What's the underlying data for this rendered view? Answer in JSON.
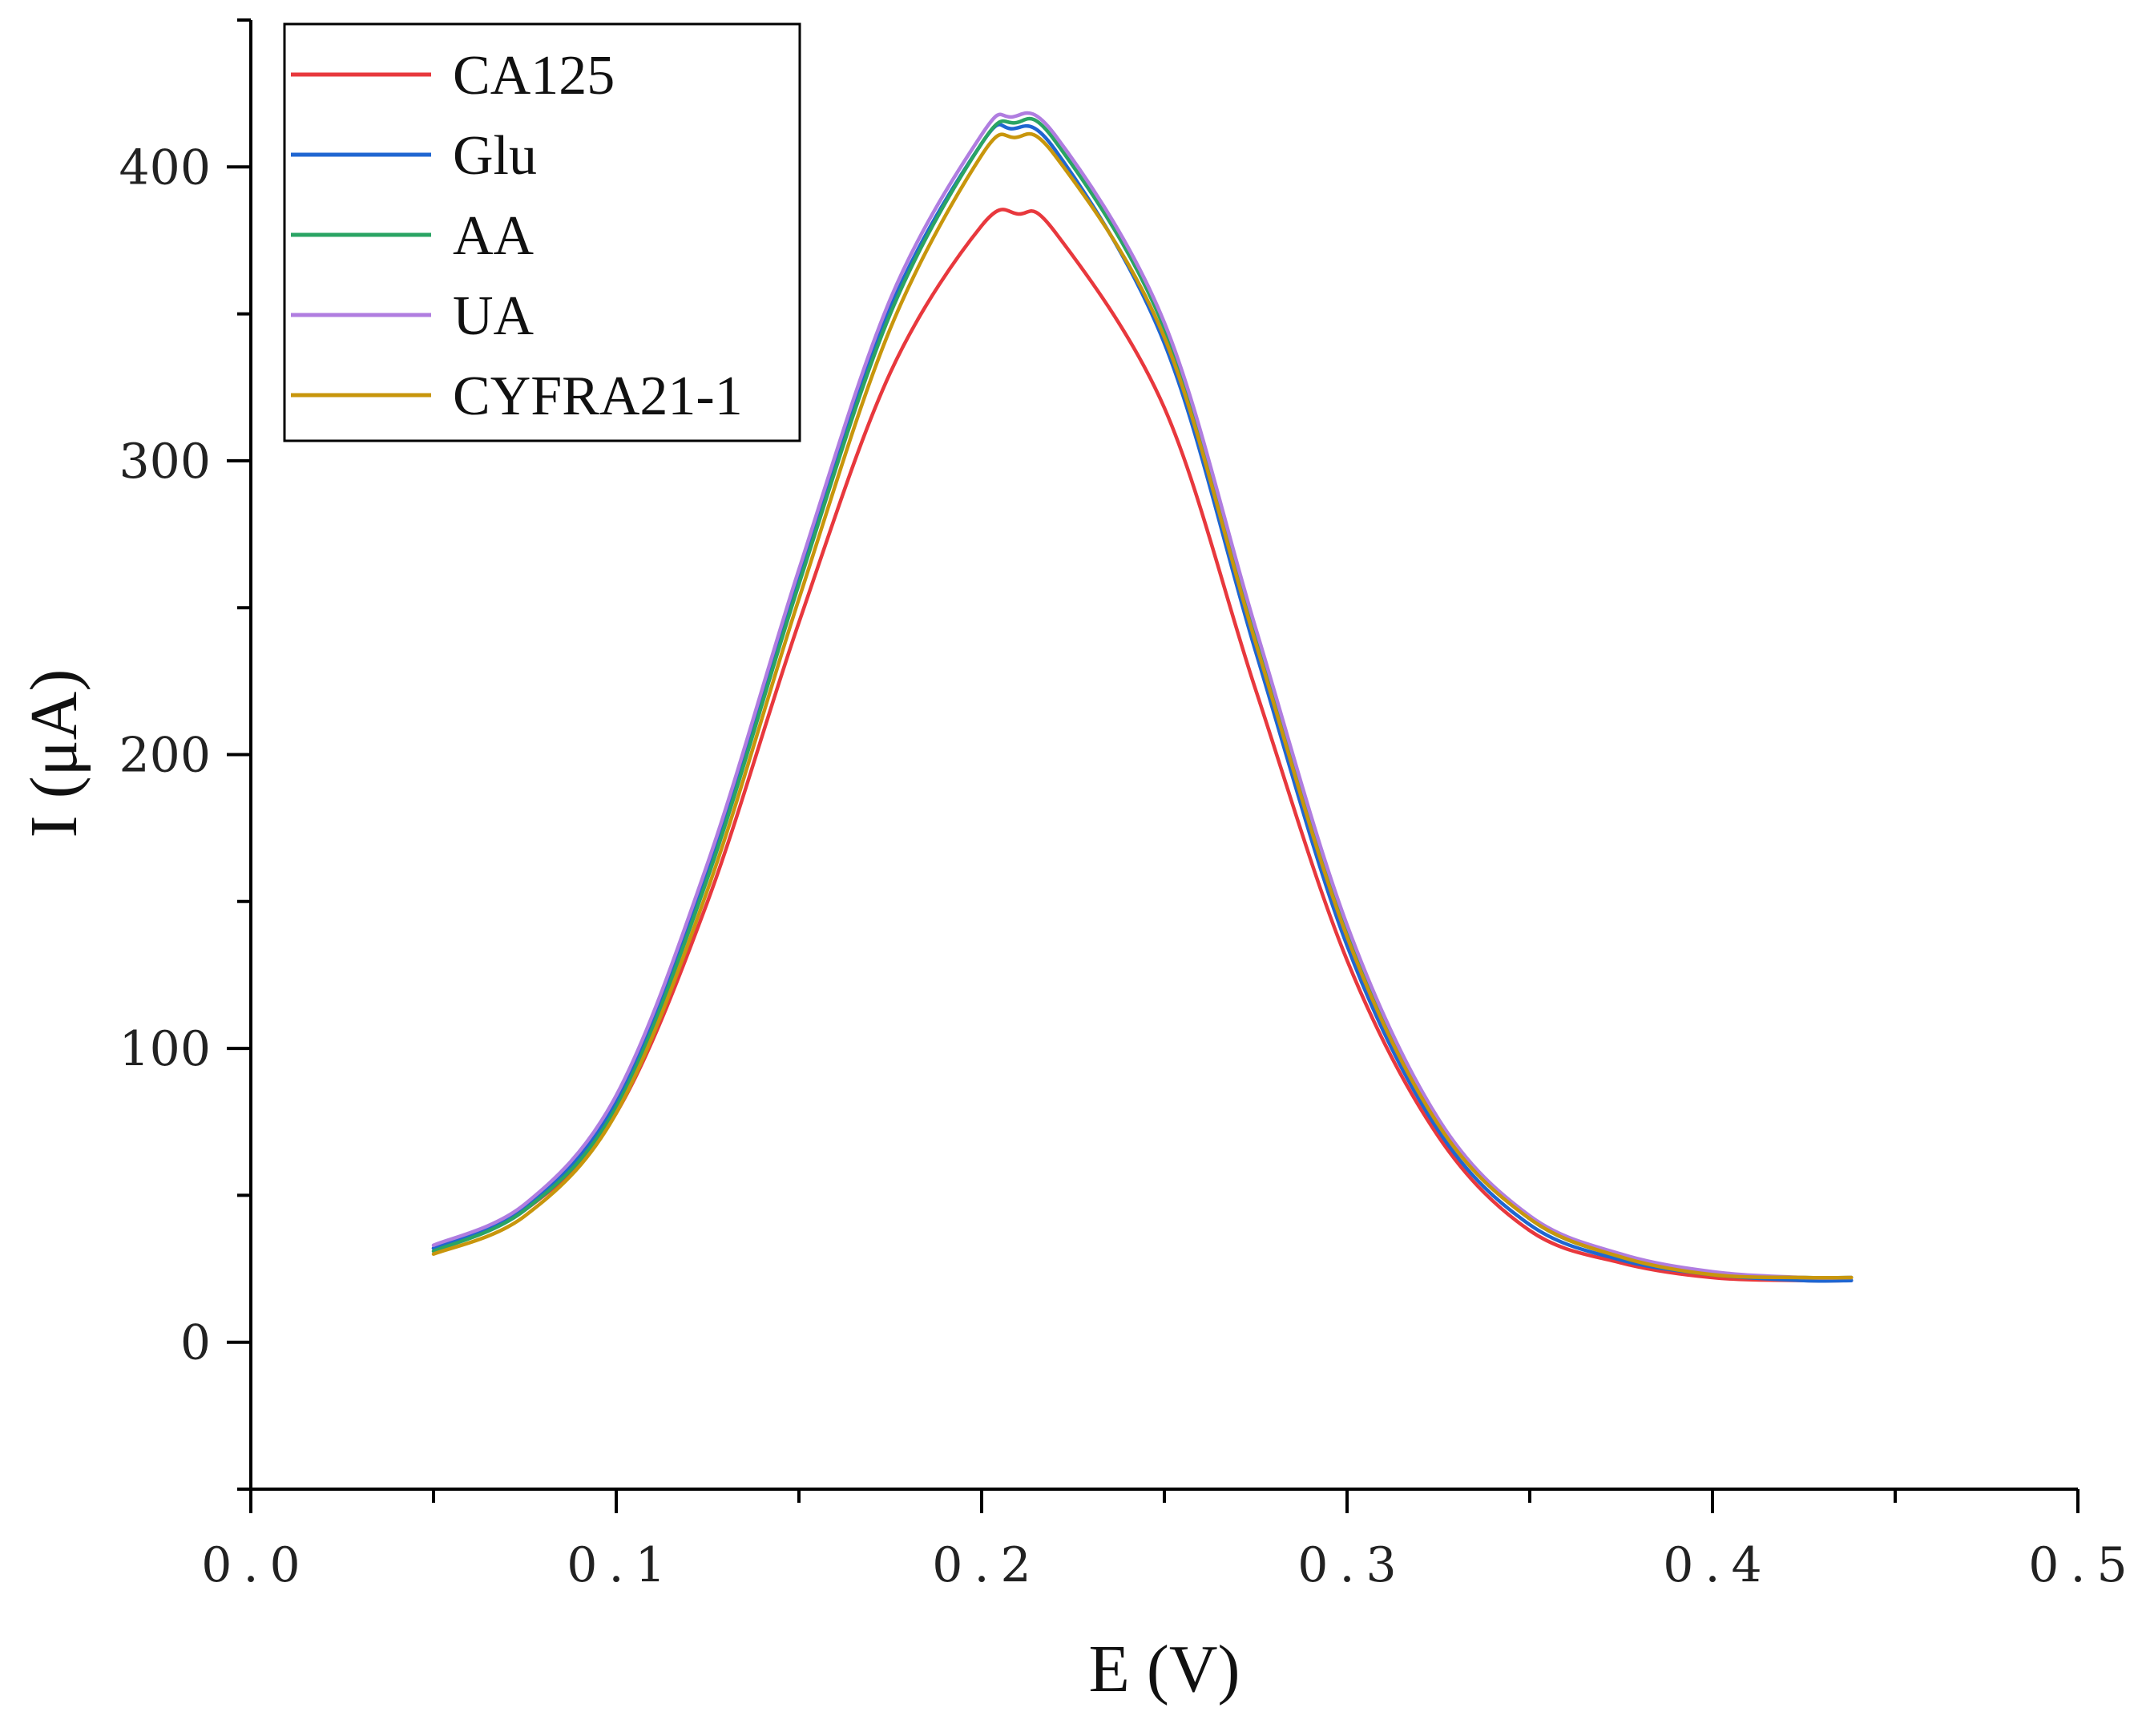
{
  "chart_data": {
    "type": "line",
    "title": "",
    "xlabel": "E (V)",
    "ylabel": "I (μA)",
    "xlim": [
      0.0,
      0.5
    ],
    "ylim": [
      -50,
      450
    ],
    "x_ticks": [
      0.0,
      0.1,
      0.2,
      0.3,
      0.4,
      0.5
    ],
    "x_tick_labels": [
      "0.0",
      "0.1",
      "0.2",
      "0.3",
      "0.4",
      "0.5"
    ],
    "y_ticks": [
      0,
      100,
      200,
      300,
      400
    ],
    "y_tick_labels": [
      "0",
      "100",
      "200",
      "300",
      "400"
    ],
    "grid": false,
    "legend_position": "top-left",
    "series": [
      {
        "name": "CA125",
        "color": "#e8383d",
        "x": [
          0.05,
          0.075,
          0.1,
          0.125,
          0.15,
          0.175,
          0.2,
          0.21,
          0.22,
          0.25,
          0.275,
          0.3,
          0.325,
          0.35,
          0.375,
          0.4,
          0.425,
          0.438
        ],
        "y": [
          32,
          45,
          78,
          150,
          245,
          330,
          380,
          384,
          378,
          318,
          222,
          130,
          70,
          38,
          27,
          22,
          21,
          21
        ]
      },
      {
        "name": "Glu",
        "color": "#1f66d1",
        "x": [
          0.05,
          0.075,
          0.1,
          0.125,
          0.15,
          0.175,
          0.2,
          0.208,
          0.22,
          0.25,
          0.275,
          0.3,
          0.325,
          0.35,
          0.375,
          0.4,
          0.425,
          0.438
        ],
        "y": [
          32,
          46,
          82,
          160,
          260,
          352,
          408,
          413,
          406,
          340,
          235,
          135,
          72,
          40,
          28,
          23,
          21,
          21
        ]
      },
      {
        "name": "AA",
        "color": "#2aa464",
        "x": [
          0.05,
          0.075,
          0.1,
          0.125,
          0.15,
          0.175,
          0.2,
          0.209,
          0.22,
          0.25,
          0.275,
          0.3,
          0.325,
          0.35,
          0.375,
          0.4,
          0.425,
          0.438
        ],
        "y": [
          31,
          45,
          80,
          158,
          258,
          350,
          408,
          415,
          409,
          345,
          240,
          140,
          75,
          42,
          29,
          23,
          22,
          22
        ]
      },
      {
        "name": "UA",
        "color": "#b07de0",
        "x": [
          0.05,
          0.075,
          0.1,
          0.125,
          0.15,
          0.175,
          0.2,
          0.208,
          0.22,
          0.25,
          0.275,
          0.3,
          0.325,
          0.35,
          0.375,
          0.4,
          0.425,
          0.438
        ],
        "y": [
          33,
          47,
          84,
          163,
          263,
          355,
          411,
          417,
          411,
          347,
          243,
          142,
          76,
          43,
          30,
          24,
          22,
          22
        ]
      },
      {
        "name": "CYFRA21-1",
        "color": "#c8960c",
        "x": [
          0.05,
          0.075,
          0.1,
          0.125,
          0.15,
          0.175,
          0.2,
          0.209,
          0.22,
          0.25,
          0.275,
          0.3,
          0.325,
          0.35,
          0.375,
          0.4,
          0.425,
          0.438
        ],
        "y": [
          30,
          43,
          78,
          154,
          253,
          345,
          404,
          410,
          404,
          342,
          238,
          138,
          74,
          42,
          29,
          23,
          22,
          22
        ]
      }
    ]
  }
}
